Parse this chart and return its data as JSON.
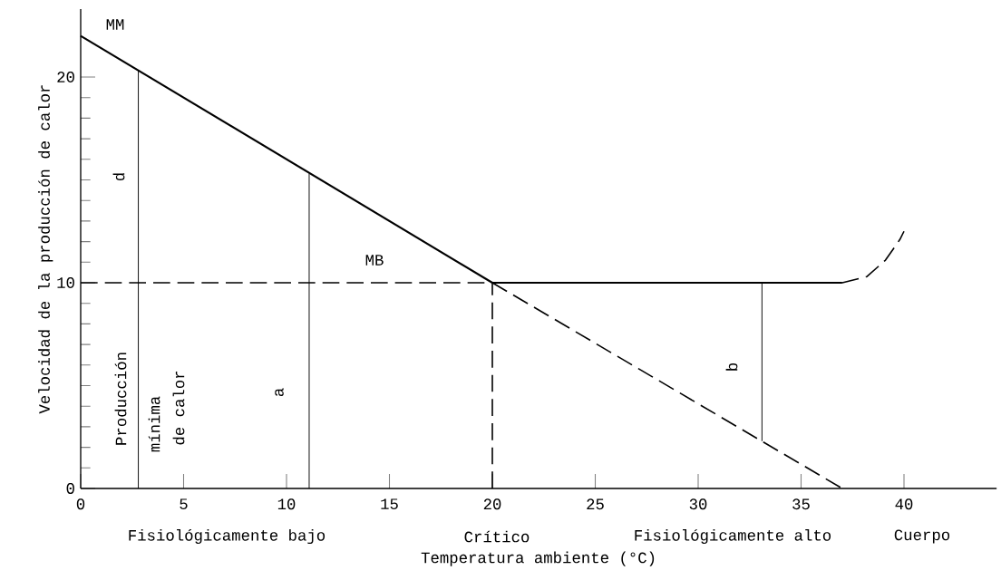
{
  "chart_data": {
    "type": "line",
    "xlabel": "Temperatura ambiente (°C)",
    "ylabel": "Velocidad de la producción de calor",
    "xlim": [
      0,
      44.5
    ],
    "ylim": [
      0,
      23.3
    ],
    "xticks": [
      0,
      5,
      10,
      15,
      20,
      25,
      30,
      35,
      40
    ],
    "yticks": [
      0,
      10,
      20
    ],
    "marker": "none",
    "series": [
      {
        "color": "#000000",
        "line_style": "solid",
        "x": [
          0,
          20
        ],
        "values": [
          22,
          10
        ]
      },
      {
        "color": "#000000",
        "line_style": "solid",
        "x": [
          20,
          37
        ],
        "values": [
          10,
          10
        ]
      },
      {
        "color": "#000000",
        "line_style": "dashed",
        "x": [
          37,
          38.2,
          39.1,
          39.8,
          40
        ],
        "values": [
          10,
          10.3,
          11.1,
          12.1,
          12.5
        ]
      },
      {
        "color": "#000000",
        "line_style": "dashed",
        "x": [
          0,
          20
        ],
        "values": [
          10,
          10
        ]
      },
      {
        "color": "#000000",
        "line_style": "dashed",
        "x": [
          20,
          20
        ],
        "values": [
          0,
          10
        ]
      },
      {
        "color": "#000000",
        "line_style": "dashed",
        "x": [
          20,
          37
        ],
        "values": [
          10,
          0
        ]
      },
      {
        "color": "#000000",
        "line_style": "solid",
        "x": [
          2.8,
          2.8
        ],
        "values": [
          0,
          20.3
        ]
      },
      {
        "color": "#000000",
        "line_style": "solid",
        "x": [
          11.1,
          11.1
        ],
        "values": [
          0,
          15.3
        ]
      },
      {
        "color": "#000000",
        "line_style": "solid",
        "x": [
          33.1,
          33.1
        ],
        "values": [
          2.3,
          10
        ]
      }
    ],
    "annotations": [
      "MM",
      "MB",
      "d",
      "a",
      "b",
      "Producción",
      "mínima",
      "de calor",
      "Fisiológicamente bajo",
      "Crítico",
      "Fisiológicamente alto",
      "Cuerpo"
    ]
  }
}
